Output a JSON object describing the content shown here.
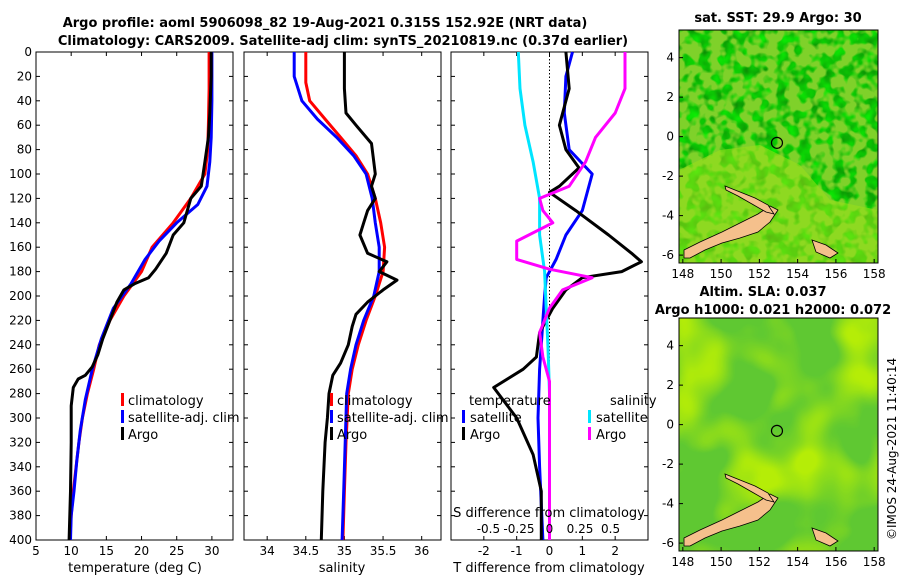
{
  "title": {
    "line1": "Argo profile: aoml 5906098_82 19-Aug-2021 0.315S 152.92E (NRT data)",
    "line2": "Climatology: CARS2009. Satellite-adj clim: synTS_20210819.nc (0.37d earlier)"
  },
  "watermark": "©IMOS 24-Aug-2021 11:40:14",
  "colors": {
    "climatology": "#ff0000",
    "satellite": "#0000ff",
    "argo": "#000000",
    "sat_salinity": "#00e5ff",
    "argo_salinity": "#ff00ff",
    "land": "#f5c08c"
  },
  "chart_data": [
    {
      "id": "temperature",
      "type": "line",
      "xlabel": "temperature (deg C)",
      "xlim": [
        5,
        33
      ],
      "ylim": [
        0,
        400
      ],
      "xticks": [
        "5",
        "10",
        "15",
        "20",
        "25",
        "30"
      ],
      "yticks": [
        "0",
        "20",
        "40",
        "60",
        "80",
        "100",
        "120",
        "140",
        "160",
        "180",
        "200",
        "220",
        "240",
        "260",
        "280",
        "300",
        "320",
        "340",
        "360",
        "380",
        "400"
      ],
      "legend": [
        "climatology",
        "satellite-adj. clim",
        "Argo"
      ],
      "series": [
        {
          "name": "climatology",
          "color": "#ff0000",
          "points": [
            [
              29.6,
              0
            ],
            [
              29.6,
              30
            ],
            [
              29.5,
              60
            ],
            [
              29.4,
              80
            ],
            [
              29.0,
              100
            ],
            [
              27.0,
              120
            ],
            [
              24.5,
              140
            ],
            [
              21.5,
              160
            ],
            [
              20.0,
              180
            ],
            [
              17.5,
              200
            ],
            [
              15.5,
              220
            ],
            [
              14.0,
              240
            ],
            [
              13.2,
              260
            ],
            [
              12.3,
              280
            ],
            [
              11.6,
              300
            ],
            [
              11.1,
              320
            ],
            [
              10.7,
              340
            ],
            [
              10.3,
              360
            ],
            [
              10.0,
              380
            ],
            [
              9.8,
              400
            ]
          ]
        },
        {
          "name": "satellite-adj. clim",
          "color": "#0000ff",
          "points": [
            [
              30.0,
              0
            ],
            [
              30.0,
              40
            ],
            [
              29.9,
              70
            ],
            [
              29.7,
              90
            ],
            [
              29.3,
              110
            ],
            [
              28.0,
              125
            ],
            [
              25.0,
              140
            ],
            [
              22.5,
              155
            ],
            [
              20.5,
              170
            ],
            [
              18.5,
              190
            ],
            [
              16.0,
              210
            ],
            [
              14.3,
              235
            ],
            [
              13.0,
              260
            ],
            [
              12.0,
              285
            ],
            [
              11.3,
              310
            ],
            [
              10.8,
              335
            ],
            [
              10.4,
              360
            ],
            [
              10.0,
              380
            ],
            [
              9.9,
              400
            ]
          ]
        },
        {
          "name": "Argo",
          "color": "#000000",
          "points": [
            [
              29.9,
              0
            ],
            [
              29.9,
              20
            ],
            [
              29.7,
              50
            ],
            [
              29.5,
              70
            ],
            [
              29.0,
              90
            ],
            [
              28.5,
              110
            ],
            [
              27.0,
              120
            ],
            [
              26.5,
              130
            ],
            [
              26.0,
              140
            ],
            [
              24.5,
              150
            ],
            [
              23.5,
              165
            ],
            [
              22.0,
              178
            ],
            [
              21.0,
              185
            ],
            [
              19.0,
              190
            ],
            [
              17.5,
              195
            ],
            [
              16.5,
              205
            ],
            [
              15.5,
              220
            ],
            [
              14.5,
              235
            ],
            [
              13.8,
              248
            ],
            [
              13.0,
              258
            ],
            [
              12.0,
              265
            ],
            [
              11.0,
              268
            ],
            [
              10.3,
              275
            ],
            [
              10.0,
              290
            ],
            [
              10.0,
              320
            ],
            [
              9.9,
              360
            ],
            [
              9.7,
              400
            ]
          ]
        }
      ]
    },
    {
      "id": "salinity",
      "type": "line",
      "xlabel": "salinity",
      "xlim": [
        33.7,
        36.25
      ],
      "ylim": [
        0,
        400
      ],
      "xticks": [
        "34",
        "34.5",
        "35",
        "35.5",
        "36"
      ],
      "legend": [
        "climatology",
        "satellite-adj. clim",
        "Argo"
      ],
      "series": [
        {
          "name": "climatology",
          "color": "#ff0000",
          "points": [
            [
              34.5,
              0
            ],
            [
              34.5,
              25
            ],
            [
              34.55,
              40
            ],
            [
              34.75,
              55
            ],
            [
              34.95,
              70
            ],
            [
              35.15,
              85
            ],
            [
              35.3,
              100
            ],
            [
              35.4,
              120
            ],
            [
              35.47,
              140
            ],
            [
              35.52,
              160
            ],
            [
              35.5,
              180
            ],
            [
              35.4,
              200
            ],
            [
              35.28,
              220
            ],
            [
              35.18,
              240
            ],
            [
              35.1,
              260
            ],
            [
              35.05,
              280
            ],
            [
              35.02,
              320
            ],
            [
              35.0,
              360
            ],
            [
              34.98,
              400
            ]
          ]
        },
        {
          "name": "satellite-adj. clim",
          "color": "#0000ff",
          "points": [
            [
              34.35,
              0
            ],
            [
              34.35,
              20
            ],
            [
              34.45,
              40
            ],
            [
              34.65,
              55
            ],
            [
              34.9,
              70
            ],
            [
              35.12,
              85
            ],
            [
              35.28,
              100
            ],
            [
              35.36,
              120
            ],
            [
              35.4,
              140
            ],
            [
              35.45,
              160
            ],
            [
              35.45,
              180
            ],
            [
              35.38,
              200
            ],
            [
              35.25,
              220
            ],
            [
              35.15,
              240
            ],
            [
              35.08,
              260
            ],
            [
              35.03,
              280
            ],
            [
              35.01,
              320
            ],
            [
              34.99,
              360
            ],
            [
              34.97,
              400
            ]
          ]
        },
        {
          "name": "Argo",
          "color": "#000000",
          "points": [
            [
              35.0,
              0
            ],
            [
              35.0,
              30
            ],
            [
              35.02,
              50
            ],
            [
              35.15,
              60
            ],
            [
              35.35,
              75
            ],
            [
              35.4,
              100
            ],
            [
              35.35,
              110
            ],
            [
              35.4,
              120
            ],
            [
              35.3,
              130
            ],
            [
              35.25,
              140
            ],
            [
              35.2,
              150
            ],
            [
              35.3,
              165
            ],
            [
              35.55,
              172
            ],
            [
              35.45,
              180
            ],
            [
              35.68,
              187
            ],
            [
              35.5,
              195
            ],
            [
              35.3,
              205
            ],
            [
              35.15,
              215
            ],
            [
              35.1,
              225
            ],
            [
              35.05,
              240
            ],
            [
              34.95,
              255
            ],
            [
              34.85,
              265
            ],
            [
              34.8,
              280
            ],
            [
              34.78,
              300
            ],
            [
              34.75,
              320
            ],
            [
              34.72,
              360
            ],
            [
              34.7,
              400
            ]
          ]
        }
      ]
    },
    {
      "id": "differences",
      "type": "line",
      "xlabel": "T difference from climatology",
      "toplabel": "S difference from climatology",
      "xlim": [
        -3,
        3
      ],
      "ylim": [
        0,
        400
      ],
      "xticks": [
        "-2",
        "-1",
        "0",
        "1",
        "2"
      ],
      "topticks": [
        "-0.5",
        "-0.25",
        "0",
        "0.25",
        "0.5"
      ],
      "legend_t_title": "temperature",
      "legend_s_title": "salinity",
      "legend_t": [
        "satellite",
        "Argo"
      ],
      "legend_s": [
        "satellite",
        "Argo"
      ],
      "series": [
        {
          "name": "temperature satellite",
          "color": "#0000ff",
          "points": [
            [
              0.7,
              0
            ],
            [
              0.5,
              20
            ],
            [
              0.45,
              50
            ],
            [
              0.6,
              80
            ],
            [
              1.3,
              100
            ],
            [
              1.0,
              130
            ],
            [
              0.5,
              150
            ],
            [
              0.2,
              170
            ],
            [
              -0.1,
              185
            ],
            [
              -0.15,
              200
            ],
            [
              -0.2,
              220
            ],
            [
              -0.25,
              240
            ],
            [
              -0.3,
              260
            ],
            [
              -0.35,
              300
            ],
            [
              -0.3,
              340
            ],
            [
              -0.2,
              400
            ]
          ]
        },
        {
          "name": "temperature Argo",
          "color": "#000000",
          "points": [
            [
              0.5,
              0
            ],
            [
              0.6,
              30
            ],
            [
              0.3,
              60
            ],
            [
              0.5,
              80
            ],
            [
              0.9,
              95
            ],
            [
              0.3,
              110
            ],
            [
              0.0,
              115
            ],
            [
              0.8,
              130
            ],
            [
              1.8,
              150
            ],
            [
              2.5,
              165
            ],
            [
              2.8,
              172
            ],
            [
              2.2,
              180
            ],
            [
              1.0,
              185
            ],
            [
              0.5,
              195
            ],
            [
              0.1,
              210
            ],
            [
              -0.3,
              230
            ],
            [
              -0.4,
              250
            ],
            [
              -0.8,
              260
            ],
            [
              -1.7,
              275
            ],
            [
              -1.0,
              300
            ],
            [
              -0.5,
              330
            ],
            [
              -0.25,
              360
            ],
            [
              -0.25,
              400
            ]
          ]
        },
        {
          "name": "salinity satellite",
          "color": "#00e5ff",
          "points": [
            [
              -0.95,
              0
            ],
            [
              -0.9,
              30
            ],
            [
              -0.75,
              60
            ],
            [
              -0.5,
              90
            ],
            [
              -0.3,
              120
            ],
            [
              -0.3,
              150
            ],
            [
              -0.15,
              180
            ],
            [
              -0.1,
              210
            ],
            [
              -0.05,
              240
            ],
            [
              0.0,
              280
            ],
            [
              0.0,
              320
            ],
            [
              0.0,
              360
            ],
            [
              0.0,
              400
            ]
          ]
        },
        {
          "name": "salinity Argo",
          "color": "#ff00ff",
          "points": [
            [
              2.3,
              0
            ],
            [
              2.3,
              30
            ],
            [
              2.0,
              50
            ],
            [
              1.4,
              70
            ],
            [
              1.1,
              90
            ],
            [
              0.6,
              110
            ],
            [
              -0.3,
              120
            ],
            [
              -0.2,
              130
            ],
            [
              0.1,
              140
            ],
            [
              -1.0,
              155
            ],
            [
              -1.0,
              170
            ],
            [
              0.0,
              178
            ],
            [
              1.3,
              185
            ],
            [
              0.4,
              195
            ],
            [
              0.0,
              210
            ],
            [
              -0.3,
              230
            ],
            [
              -0.2,
              250
            ],
            [
              0.0,
              270
            ],
            [
              0.0,
              320
            ],
            [
              0.0,
              400
            ]
          ]
        }
      ]
    },
    {
      "id": "sst_map",
      "type": "heatmap",
      "title": "sat. SST: 29.9 Argo: 30",
      "xticks": [
        "148",
        "150",
        "152",
        "154",
        "156",
        "158"
      ],
      "yticks": [
        "4",
        "2",
        "0",
        "-2",
        "-4",
        "-6"
      ],
      "xlim": [
        147.8,
        158.2
      ],
      "ylim": [
        -6.4,
        5.4
      ],
      "argo_position": [
        152.92,
        -0.315
      ]
    },
    {
      "id": "sla_map",
      "type": "heatmap",
      "title": "Altim. SLA: 0.037",
      "subtitle": "Argo h1000: 0.021 h2000: 0.072",
      "xticks": [
        "148",
        "150",
        "152",
        "154",
        "156",
        "158"
      ],
      "yticks": [
        "4",
        "2",
        "0",
        "-2",
        "-4",
        "-6"
      ],
      "xlim": [
        147.8,
        158.2
      ],
      "ylim": [
        -6.4,
        5.4
      ],
      "argo_position": [
        152.92,
        -0.315
      ]
    }
  ]
}
